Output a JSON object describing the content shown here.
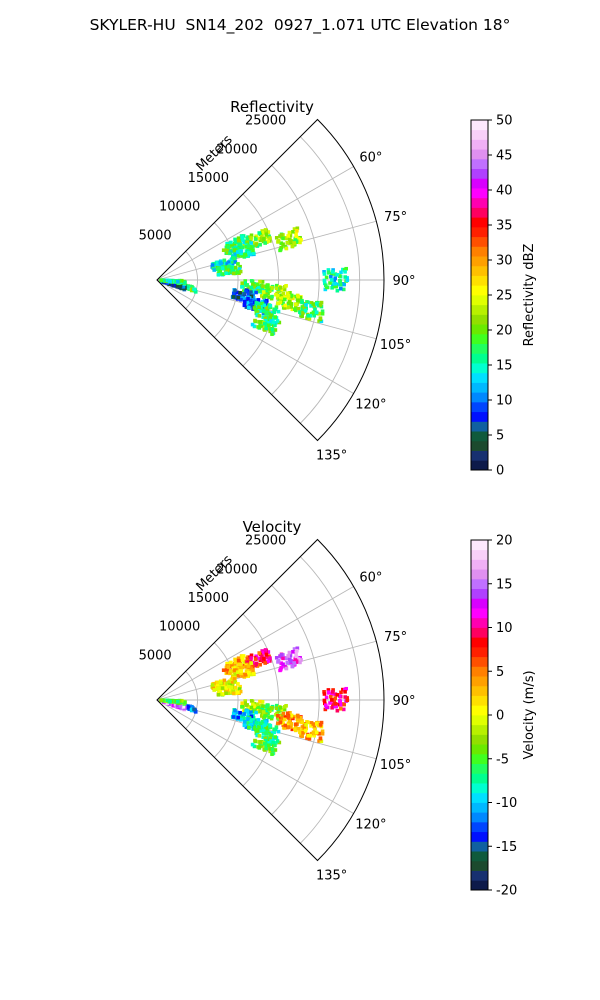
{
  "title": "SKYLER-HU  SN14_202  0927_1.071 UTC Elevation 18°",
  "chart_data": [
    {
      "type": "polar-ppi",
      "field": "reflectivity",
      "title": "Reflectivity",
      "range_label": "Meters",
      "azimuth_range_deg": [
        45,
        135
      ],
      "radial_range_m": [
        0,
        28000
      ],
      "radial_ticks": [
        5000,
        10000,
        15000,
        20000,
        25000
      ],
      "azimuth_ticks": [
        60,
        75,
        90,
        105,
        120,
        135
      ],
      "grid": true,
      "colorbar": {
        "label": "Reflectivity dBZ",
        "min": 0,
        "max": 50,
        "ticks": [
          0,
          5,
          10,
          15,
          20,
          25,
          30,
          35,
          40,
          45,
          50
        ],
        "colors": [
          "#0d1a4a",
          "#173070",
          "#1c4a2e",
          "#0f5a3c",
          "#1060a0",
          "#0010ff",
          "#0045ff",
          "#0088ff",
          "#00b8ff",
          "#00e0ff",
          "#00ffd0",
          "#00ff90",
          "#20ff60",
          "#40ff20",
          "#6aea00",
          "#92e000",
          "#b8f000",
          "#e0ff00",
          "#ffff00",
          "#ffe000",
          "#ffc000",
          "#ffa000",
          "#ff8000",
          "#ff5000",
          "#ff2000",
          "#ff0000",
          "#ff0060",
          "#ff00b0",
          "#ff00ff",
          "#d800ff",
          "#b040ff",
          "#c070ff",
          "#e090f0",
          "#f0b0f5",
          "#f8d0f8",
          "#fde8fd"
        ]
      },
      "echoes": [
        {
          "az": 66,
          "r": 10500,
          "dbz": 18
        },
        {
          "az": 68,
          "r": 13500,
          "dbz": 20
        },
        {
          "az": 72,
          "r": 11000,
          "dbz": 16
        },
        {
          "az": 73,
          "r": 17000,
          "dbz": 22
        },
        {
          "az": 77,
          "r": 8500,
          "dbz": 14
        },
        {
          "az": 82,
          "r": 9000,
          "dbz": 18
        },
        {
          "az": 90,
          "r": 22000,
          "dbz": 15
        },
        {
          "az": 94,
          "r": 12000,
          "dbz": 18
        },
        {
          "az": 96,
          "r": 14500,
          "dbz": 21
        },
        {
          "az": 99,
          "r": 16500,
          "dbz": 22
        },
        {
          "az": 100,
          "r": 11000,
          "dbz": 8
        },
        {
          "az": 104,
          "r": 12500,
          "dbz": 10
        },
        {
          "az": 101,
          "r": 19500,
          "dbz": 18
        },
        {
          "az": 106,
          "r": 14000,
          "dbz": 17
        },
        {
          "az": 112,
          "r": 14500,
          "dbz": 18
        },
        {
          "az": 104,
          "r": 3500,
          "dbz": 18
        },
        {
          "az": 106,
          "r": 2200,
          "dbz": 6
        },
        {
          "az": 95,
          "r": 2000,
          "dbz": 16
        }
      ]
    },
    {
      "type": "polar-ppi",
      "field": "velocity",
      "title": "Velocity",
      "range_label": "Meters",
      "azimuth_range_deg": [
        45,
        135
      ],
      "radial_range_m": [
        0,
        28000
      ],
      "radial_ticks": [
        5000,
        10000,
        15000,
        20000,
        25000
      ],
      "azimuth_ticks": [
        60,
        75,
        90,
        105,
        120,
        135
      ],
      "grid": true,
      "colorbar": {
        "label": "Velocity (m/s)",
        "min": -20,
        "max": 20,
        "ticks": [
          -20,
          -15,
          -10,
          -5,
          0,
          5,
          10,
          15,
          20
        ],
        "colors": [
          "#0d1a4a",
          "#173070",
          "#1c4a2e",
          "#0f5a3c",
          "#1060a0",
          "#0010ff",
          "#0045ff",
          "#0088ff",
          "#00b8ff",
          "#00e0ff",
          "#00ffd0",
          "#00ff90",
          "#20ff60",
          "#40ff20",
          "#6aea00",
          "#92e000",
          "#b8f000",
          "#e0ff00",
          "#ffff00",
          "#ffe000",
          "#ffc000",
          "#ffa000",
          "#ff8000",
          "#ff5000",
          "#ff2000",
          "#ff0000",
          "#ff0060",
          "#ff00b0",
          "#ff00ff",
          "#d800ff",
          "#b040ff",
          "#c070ff",
          "#e090f0",
          "#f0b0f5",
          "#f8d0f8",
          "#fde8fd"
        ]
      },
      "echoes": [
        {
          "az": 66,
          "r": 10500,
          "vel": 3
        },
        {
          "az": 68,
          "r": 13500,
          "vel": 8
        },
        {
          "az": 72,
          "r": 11000,
          "vel": 2
        },
        {
          "az": 73,
          "r": 17000,
          "vel": 14
        },
        {
          "az": 77,
          "r": 8500,
          "vel": 1
        },
        {
          "az": 82,
          "r": 9000,
          "vel": 0
        },
        {
          "az": 90,
          "r": 22000,
          "vel": 9
        },
        {
          "az": 94,
          "r": 12000,
          "vel": -2
        },
        {
          "az": 96,
          "r": 14500,
          "vel": -4
        },
        {
          "az": 99,
          "r": 16500,
          "vel": 4
        },
        {
          "az": 100,
          "r": 11000,
          "vel": -10
        },
        {
          "az": 104,
          "r": 12500,
          "vel": -8
        },
        {
          "az": 101,
          "r": 19500,
          "vel": 3
        },
        {
          "az": 106,
          "r": 14000,
          "vel": -7
        },
        {
          "az": 112,
          "r": 14500,
          "vel": -5
        },
        {
          "az": 104,
          "r": 3500,
          "vel": -12
        },
        {
          "az": 106,
          "r": 2200,
          "vel": 16
        },
        {
          "az": 95,
          "r": 2000,
          "vel": -5
        }
      ]
    }
  ]
}
